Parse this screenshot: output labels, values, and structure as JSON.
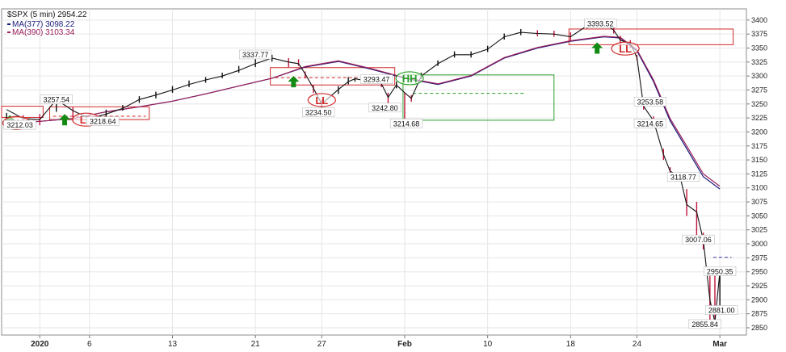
{
  "chart_data": {
    "type": "line",
    "symbol_label": "$SPX (5 min) 2954.22",
    "legend": [
      {
        "label": "MA(377) 3098.22",
        "color": "#1a1a7a"
      },
      {
        "label": "MA(390) 3103.34",
        "color": "#9a1f5c"
      }
    ],
    "colors": {
      "price": "#111111",
      "price_down": "#c0143c",
      "ma377": "#1a1a7a",
      "ma390": "#9a1f5c",
      "support_box": "#d02a2a",
      "hh_box": "#2aa02a",
      "arrow": "#138a13"
    },
    "x_ticks": [
      {
        "label": "2020",
        "pos": 2
      },
      {
        "label": "6",
        "pos": 5
      },
      {
        "label": "13",
        "pos": 10
      },
      {
        "label": "21",
        "pos": 15
      },
      {
        "label": "27",
        "pos": 19
      },
      {
        "label": "Feb",
        "pos": 24
      },
      {
        "label": "10",
        "pos": 29
      },
      {
        "label": "18",
        "pos": 34
      },
      {
        "label": "24",
        "pos": 38
      },
      {
        "label": "Mar",
        "pos": 43
      }
    ],
    "xlim": [
      -0.3,
      44.6
    ],
    "ylim": [
      2837,
      3420
    ],
    "y_ticks": [
      2850,
      2875,
      2900,
      2925,
      2950,
      2975,
      3000,
      3025,
      3050,
      3075,
      3100,
      3125,
      3150,
      3175,
      3200,
      3225,
      3250,
      3275,
      3300,
      3325,
      3350,
      3375,
      3400
    ],
    "grid": true,
    "price_series": {
      "name": "$SPX",
      "x": [
        0,
        1,
        2,
        3,
        4,
        5,
        6,
        7,
        8,
        9,
        10,
        11,
        12,
        13,
        14,
        15,
        16,
        17,
        17.6,
        18,
        18.5,
        19,
        20,
        20.6,
        21,
        21.6,
        22,
        22.6,
        23,
        23.5,
        24,
        24.4,
        25,
        26,
        27,
        28,
        29,
        30,
        31,
        32,
        33,
        34,
        35,
        36,
        36.6,
        37,
        37.6,
        38,
        38.4,
        39,
        39.6,
        40,
        40.6,
        41,
        41.6,
        42,
        42.4,
        42.7,
        43
      ],
      "y": [
        3240,
        3224,
        3222,
        3258,
        3238,
        3224,
        3232,
        3242,
        3258,
        3266,
        3275,
        3285,
        3293,
        3300,
        3310,
        3322,
        3332,
        3325,
        3322,
        3304,
        3278,
        3250,
        3276,
        3290,
        3295,
        3292,
        3293,
        3286,
        3262,
        3284,
        3270,
        3260,
        3300,
        3322,
        3338,
        3338,
        3348,
        3370,
        3378,
        3376,
        3375,
        3370,
        3390,
        3395,
        3382,
        3364,
        3358,
        3333,
        3246,
        3220,
        3160,
        3130,
        3120,
        3070,
        3057,
        3007,
        2900,
        2860,
        2950
      ],
      "lows": [
        3218,
        3216,
        3212,
        3236,
        3220,
        3214,
        3225,
        3238,
        3252,
        3260,
        3270,
        3280,
        3288,
        3296,
        3306,
        3316,
        3326,
        3316,
        3318,
        3296,
        3270,
        3234.5,
        3268,
        3285,
        3290,
        3287,
        3288,
        3280,
        3242.8,
        3278,
        3214.68,
        3254,
        3295,
        3318,
        3333,
        3333,
        3343,
        3365,
        3373,
        3371,
        3370,
        3362,
        3385,
        3390,
        3376,
        3356,
        3350,
        3328,
        3240,
        3214.65,
        3150,
        3118.77,
        3112,
        3050,
        3007.06,
        2990,
        2855.84,
        2860,
        2881
      ],
      "highs": [
        3234,
        3230,
        3232,
        3257.54,
        3244,
        3232,
        3240,
        3248,
        3264,
        3272,
        3282,
        3292,
        3298,
        3306,
        3318,
        3337.77,
        3338,
        3332,
        3330,
        3308,
        3284,
        3258,
        3282,
        3298,
        3297,
        3293.47,
        3297,
        3292,
        3270,
        3290,
        3270,
        3266,
        3306,
        3328,
        3344,
        3344,
        3354,
        3376,
        3384,
        3382,
        3381,
        3378,
        3393.52,
        3397,
        3388,
        3372,
        3364,
        3338,
        3253.58,
        3228,
        3170,
        3137,
        3128,
        3098,
        3075,
        3020,
        2950.35,
        2955,
        2955
      ]
    },
    "ma377": {
      "name": "MA(377)",
      "x": [
        0,
        2,
        4,
        6,
        8,
        10,
        12,
        14,
        16,
        18,
        20,
        22,
        24,
        26,
        28,
        30,
        32,
        34,
        36,
        37,
        38,
        39,
        40,
        41,
        42,
        43
      ],
      "y": [
        3214,
        3219,
        3224,
        3236,
        3245,
        3255,
        3268,
        3282,
        3296,
        3316,
        3326,
        3312,
        3296,
        3285,
        3300,
        3332,
        3350,
        3362,
        3370,
        3368,
        3345,
        3290,
        3220,
        3170,
        3120,
        3098
      ]
    },
    "ma390": {
      "name": "MA(390)",
      "x": [
        0,
        2,
        4,
        6,
        8,
        10,
        12,
        14,
        16,
        18,
        20,
        22,
        24,
        26,
        28,
        30,
        32,
        34,
        36,
        37,
        38,
        39,
        40,
        41,
        42,
        43
      ],
      "y": [
        3215,
        3219,
        3224,
        3236,
        3245,
        3255,
        3268,
        3282,
        3296,
        3317,
        3327,
        3313,
        3297,
        3286,
        3301,
        3333,
        3351,
        3363,
        3371,
        3369,
        3347,
        3293,
        3224,
        3175,
        3125,
        3103
      ]
    },
    "value_labels": [
      {
        "text": "3212.03",
        "x": 0.8,
        "y": 3212.03
      },
      {
        "text": "3257.54",
        "x": 3,
        "y": 3257.54
      },
      {
        "text": "3218.64",
        "x": 5.8,
        "y": 3218.64
      },
      {
        "text": "3337.77",
        "x": 15,
        "y": 3337.77
      },
      {
        "text": "3293.47",
        "x": 22.3,
        "y": 3293.47
      },
      {
        "text": "3234.50",
        "x": 18.8,
        "y": 3234.5
      },
      {
        "text": "3242.80",
        "x": 22.8,
        "y": 3242.8
      },
      {
        "text": "3214.68",
        "x": 24.1,
        "y": 3214.68
      },
      {
        "text": "3393.52",
        "x": 35.8,
        "y": 3393.52
      },
      {
        "text": "3253.58",
        "x": 38.8,
        "y": 3253.58
      },
      {
        "text": "3214.65",
        "x": 38.8,
        "y": 3214.65
      },
      {
        "text": "3118.77",
        "x": 40.8,
        "y": 3118.77
      },
      {
        "text": "3007.06",
        "x": 41.7,
        "y": 3007.06
      },
      {
        "text": "2950.35",
        "x": 43,
        "y": 2950.35
      },
      {
        "text": "2881.00",
        "x": 43.1,
        "y": 2881.0
      },
      {
        "text": "2855.84",
        "x": 42.1,
        "y": 2855.84
      }
    ],
    "annotations": {
      "ll_marks": [
        {
          "text": "LL",
          "x": 0.6,
          "y": 3216
        },
        {
          "text": "LL",
          "x": 4.8,
          "y": 3222
        },
        {
          "text": "LL",
          "x": 19.0,
          "y": 3257
        },
        {
          "text": "LL",
          "x": 37.3,
          "y": 3349
        }
      ],
      "hh_marks": [
        {
          "text": "HH",
          "x": 24.3,
          "y": 3296
        }
      ],
      "arrows": [
        {
          "x": 0.2,
          "y": 3220
        },
        {
          "x": 3.5,
          "y": 3222
        },
        {
          "x": 17.3,
          "y": 3290
        },
        {
          "x": 35.6,
          "y": 3350
        }
      ],
      "red_boxes": [
        {
          "x0": -0.3,
          "x1": 2.2,
          "y0": 3226,
          "y1": 3246
        },
        {
          "x0": 2.6,
          "x1": 8.6,
          "y0": 3222,
          "y1": 3245
        },
        {
          "x0": 15.9,
          "x1": 23.4,
          "y0": 3284,
          "y1": 3315
        },
        {
          "x0": 33.9,
          "x1": 43.8,
          "y0": 3356,
          "y1": 3384
        }
      ],
      "green_boxes": [
        {
          "x0": 23.9,
          "x1": 33.0,
          "y0": 3221,
          "y1": 3302
        }
      ],
      "dashed_lines": [
        {
          "x0": 2.8,
          "x1": 8.4,
          "y": 3228,
          "color": "#d02a2a"
        },
        {
          "x0": 16.2,
          "x1": 23.0,
          "y": 3297,
          "color": "#d02a2a"
        },
        {
          "x0": 24.5,
          "x1": 31.2,
          "y": 3269,
          "color": "#2aa02a"
        },
        {
          "x0": 42.6,
          "x1": 43.7,
          "y": 2976,
          "color": "#4444aa"
        }
      ]
    }
  }
}
